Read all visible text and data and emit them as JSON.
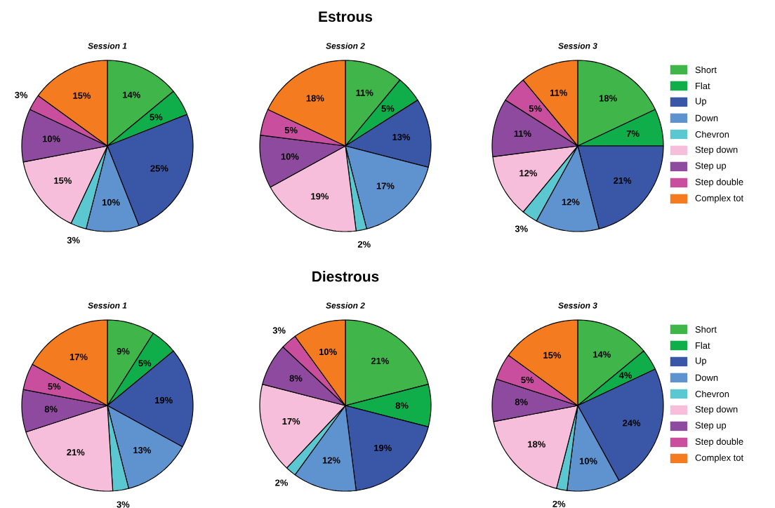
{
  "chart_data": [
    {
      "type": "pie",
      "title": "Session 1",
      "categories": [
        null,
        null,
        null,
        null,
        null,
        null,
        null,
        null,
        null
      ],
      "values": [
        14,
        5,
        25,
        10,
        3,
        15,
        10,
        3,
        15
      ],
      "value_labels": [
        "14%",
        "5%",
        "25%",
        "10%",
        "3%",
        "15%",
        "10%",
        "3%",
        "15%"
      ],
      "colors": [
        "#3fb54a",
        "#0fae4b",
        "#3a56a6",
        "#5f93d0",
        "#5bc7d0",
        "#f7bedb",
        "#8e4a9e",
        "#c94f9e",
        "#f47b20"
      ]
    },
    {
      "type": "pie",
      "title": "Session 2",
      "annotations": [
        "Estrous"
      ],
      "categories": [
        null,
        null,
        null,
        null,
        null,
        null,
        null,
        null,
        null
      ],
      "values": [
        11,
        5,
        13,
        17,
        2,
        19,
        10,
        5,
        18
      ],
      "value_labels": [
        "11%",
        "5%",
        "13%",
        "17%",
        "2%",
        "19%",
        "10%",
        "5%",
        "18%"
      ],
      "colors": [
        "#3fb54a",
        "#0fae4b",
        "#3a56a6",
        "#5f93d0",
        "#5bc7d0",
        "#f7bedb",
        "#8e4a9e",
        "#c94f9e",
        "#f47b20"
      ]
    },
    {
      "type": "pie",
      "title": "Session 3",
      "categories": [
        "Short",
        "Flat",
        "Up",
        "Down",
        "Chevron",
        "Step down",
        "Step up",
        "Step double",
        "Complex tot"
      ],
      "values": [
        18,
        7,
        21,
        12,
        3,
        12,
        11,
        5,
        11
      ],
      "value_labels": [
        "18%",
        "7%",
        "21%",
        "12%",
        "3%",
        "12%",
        "11%",
        "5%",
        "11%"
      ],
      "colors": [
        "#3fb54a",
        "#0fae4b",
        "#3a56a6",
        "#5f93d0",
        "#5bc7d0",
        "#f7bedb",
        "#8e4a9e",
        "#c94f9e",
        "#f47b20"
      ],
      "legend": "right"
    },
    {
      "type": "pie",
      "title": "Session 1",
      "categories": [
        null,
        null,
        null,
        null,
        null,
        null,
        null,
        null,
        null
      ],
      "values": [
        9,
        5,
        19,
        13,
        3,
        21,
        8,
        5,
        17
      ],
      "value_labels": [
        "9%",
        "5%",
        "19%",
        "13%",
        "3%",
        "21%",
        "8%",
        "5%",
        "17%"
      ],
      "colors": [
        "#3fb54a",
        "#0fae4b",
        "#3a56a6",
        "#5f93d0",
        "#5bc7d0",
        "#f7bedb",
        "#8e4a9e",
        "#c94f9e",
        "#f47b20"
      ]
    },
    {
      "type": "pie",
      "title": "Session 2",
      "annotations": [
        "Diestrous"
      ],
      "categories": [
        null,
        null,
        null,
        null,
        null,
        null,
        null,
        null,
        null
      ],
      "values": [
        21,
        8,
        19,
        12,
        2,
        17,
        8,
        3,
        10
      ],
      "value_labels": [
        "21%",
        "8%",
        "19%",
        "12%",
        "2%",
        "17%",
        "8%",
        "3%",
        "10%"
      ],
      "colors": [
        "#3fb54a",
        "#0fae4b",
        "#3a56a6",
        "#5f93d0",
        "#5bc7d0",
        "#f7bedb",
        "#8e4a9e",
        "#c94f9e",
        "#f47b20"
      ]
    },
    {
      "type": "pie",
      "title": "Session 3",
      "categories": [
        "Short",
        "Flat",
        "Up",
        "Down",
        "Chevron",
        "Step down",
        "Step up",
        "Step double",
        "Complex tot"
      ],
      "values": [
        14,
        4,
        24,
        10,
        2,
        18,
        8,
        5,
        15
      ],
      "value_labels": [
        "14%",
        "4%",
        "24%",
        "10%",
        "2%",
        "18%",
        "8%",
        "5%",
        "15%"
      ],
      "colors": [
        "#3fb54a",
        "#0fae4b",
        "#3a56a6",
        "#5f93d0",
        "#5bc7d0",
        "#f7bedb",
        "#8e4a9e",
        "#c94f9e",
        "#f47b20"
      ],
      "legend": "right"
    }
  ]
}
